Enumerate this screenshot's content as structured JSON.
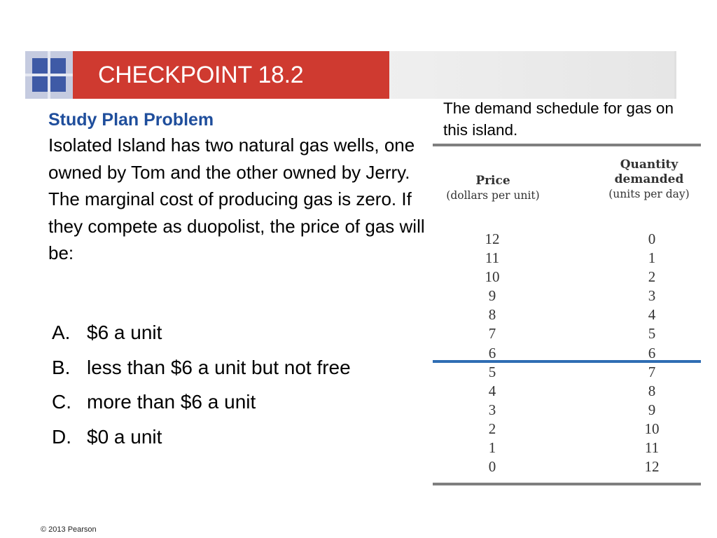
{
  "header": {
    "title": "CHECKPOINT 18.2",
    "accent_color": "#cf3a30",
    "logo_icon": "blue-squares-icon"
  },
  "question": {
    "subheading": "Study Plan Problem",
    "subheading_color": "#1f4e9c",
    "text": "Isolated Island has two natural gas wells, one owned by Tom and the other owned by Jerry. The marginal cost of producing gas is zero. If they compete as duopolist, the price of gas will be:"
  },
  "answers": [
    {
      "letter": "A.",
      "text": "$6 a unit"
    },
    {
      "letter": "B.",
      "text": "less than $6 a unit but not free"
    },
    {
      "letter": "C.",
      "text": "more than $6 a unit"
    },
    {
      "letter": "D.",
      "text": "$0 a unit"
    }
  ],
  "table": {
    "caption": "The demand schedule  for gas on this island.",
    "price_header": "Price",
    "price_subheader": "(dollars per unit)",
    "qty_header_line1": "Quantity",
    "qty_header_line2": "demanded",
    "qty_subheader": "(units per day)",
    "rows": [
      {
        "price": "12",
        "quantity": "0"
      },
      {
        "price": "11",
        "quantity": "1"
      },
      {
        "price": "10",
        "quantity": "2"
      },
      {
        "price": "9",
        "quantity": "3"
      },
      {
        "price": "8",
        "quantity": "4"
      },
      {
        "price": "7",
        "quantity": "5"
      },
      {
        "price": "6",
        "quantity": "6"
      },
      {
        "price": "5",
        "quantity": "7"
      },
      {
        "price": "4",
        "quantity": "8"
      },
      {
        "price": "3",
        "quantity": "9"
      },
      {
        "price": "2",
        "quantity": "10"
      },
      {
        "price": "1",
        "quantity": "11"
      },
      {
        "price": "0",
        "quantity": "12"
      }
    ]
  },
  "footer": {
    "copyright": "© 2013 Pearson"
  }
}
